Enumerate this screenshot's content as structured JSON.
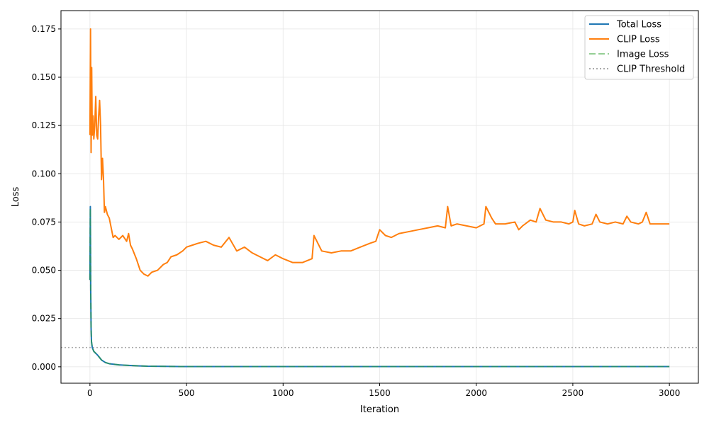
{
  "chart_data": {
    "type": "line",
    "xlabel": "Iteration",
    "ylabel": "Loss",
    "xlim": [
      -150,
      3150
    ],
    "ylim": [
      -0.0085,
      0.1845
    ],
    "xticks": [
      0,
      500,
      1000,
      1500,
      2000,
      2500,
      3000
    ],
    "xtick_labels": [
      "0",
      "500",
      "1000",
      "1500",
      "2000",
      "2500",
      "3000"
    ],
    "yticks": [
      0.0,
      0.025,
      0.05,
      0.075,
      0.1,
      0.125,
      0.15,
      0.175
    ],
    "ytick_labels": [
      "0.000",
      "0.025",
      "0.050",
      "0.075",
      "0.100",
      "0.125",
      "0.150",
      "0.175"
    ],
    "grid": true,
    "legend_position": "top-right",
    "series": [
      {
        "name": "Total Loss",
        "color": "#1f77b4",
        "style": "solid",
        "x": [
          0,
          2,
          4,
          6,
          8,
          12,
          20,
          40,
          60,
          80,
          100,
          150,
          200,
          250,
          300,
          400,
          500,
          1000,
          1500,
          2000,
          2500,
          3000
        ],
        "y": [
          0.045,
          0.083,
          0.04,
          0.02,
          0.013,
          0.01,
          0.008,
          0.006,
          0.0035,
          0.0022,
          0.0016,
          0.001,
          0.0007,
          0.0005,
          0.0003,
          0.0002,
          0.0001,
          0.0001,
          0.0001,
          0.0001,
          0.0001,
          0.0001
        ]
      },
      {
        "name": "CLIP Loss",
        "color": "#ff7f0e",
        "style": "solid",
        "x": [
          0,
          3,
          6,
          9,
          12,
          16,
          20,
          25,
          30,
          35,
          40,
          45,
          50,
          55,
          60,
          65,
          70,
          75,
          80,
          90,
          100,
          110,
          120,
          130,
          150,
          170,
          190,
          200,
          210,
          220,
          240,
          260,
          280,
          300,
          320,
          350,
          380,
          400,
          420,
          450,
          480,
          500,
          530,
          560,
          600,
          640,
          680,
          720,
          760,
          800,
          840,
          880,
          920,
          960,
          1000,
          1050,
          1100,
          1150,
          1160,
          1200,
          1250,
          1300,
          1350,
          1400,
          1450,
          1480,
          1500,
          1530,
          1560,
          1600,
          1650,
          1700,
          1750,
          1800,
          1840,
          1852,
          1870,
          1900,
          1950,
          2000,
          2040,
          2050,
          2080,
          2100,
          2150,
          2200,
          2220,
          2240,
          2280,
          2310,
          2330,
          2360,
          2400,
          2440,
          2480,
          2500,
          2510,
          2530,
          2560,
          2600,
          2620,
          2640,
          2680,
          2720,
          2760,
          2780,
          2800,
          2840,
          2860,
          2880,
          2900,
          2950,
          3000
        ],
        "y": [
          0.12,
          0.175,
          0.111,
          0.155,
          0.12,
          0.13,
          0.118,
          0.125,
          0.14,
          0.12,
          0.118,
          0.13,
          0.138,
          0.125,
          0.097,
          0.108,
          0.098,
          0.08,
          0.083,
          0.079,
          0.077,
          0.072,
          0.067,
          0.068,
          0.066,
          0.068,
          0.065,
          0.069,
          0.063,
          0.061,
          0.056,
          0.05,
          0.048,
          0.047,
          0.049,
          0.05,
          0.053,
          0.054,
          0.057,
          0.058,
          0.06,
          0.062,
          0.063,
          0.064,
          0.065,
          0.063,
          0.062,
          0.067,
          0.06,
          0.062,
          0.059,
          0.057,
          0.055,
          0.058,
          0.056,
          0.054,
          0.054,
          0.056,
          0.068,
          0.06,
          0.059,
          0.06,
          0.06,
          0.062,
          0.064,
          0.065,
          0.071,
          0.068,
          0.067,
          0.069,
          0.07,
          0.071,
          0.072,
          0.073,
          0.072,
          0.083,
          0.073,
          0.074,
          0.073,
          0.072,
          0.074,
          0.083,
          0.077,
          0.074,
          0.074,
          0.075,
          0.071,
          0.073,
          0.076,
          0.075,
          0.082,
          0.076,
          0.075,
          0.075,
          0.074,
          0.075,
          0.081,
          0.074,
          0.073,
          0.074,
          0.079,
          0.075,
          0.074,
          0.075,
          0.074,
          0.078,
          0.075,
          0.074,
          0.075,
          0.08,
          0.074,
          0.074,
          0.074
        ]
      },
      {
        "name": "Image Loss",
        "color": "#2ca02c",
        "style": "dashed",
        "alpha": 0.5,
        "x": [
          0,
          2,
          4,
          6,
          8,
          12,
          20,
          40,
          60,
          80,
          100,
          150,
          200,
          250,
          300,
          400,
          500,
          1000,
          1500,
          2000,
          2500,
          3000
        ],
        "y": [
          0.045,
          0.082,
          0.04,
          0.02,
          0.013,
          0.01,
          0.008,
          0.006,
          0.0035,
          0.0022,
          0.0016,
          0.001,
          0.0007,
          0.0005,
          0.0003,
          0.0002,
          0.0001,
          0.0001,
          0.0001,
          0.0001,
          0.0001,
          0.0001
        ]
      }
    ],
    "reference_lines": [
      {
        "name": "CLIP Threshold",
        "y": 0.01,
        "color": "#aaaaaa",
        "style": "dotted"
      }
    ],
    "legend": [
      "Total Loss",
      "CLIP Loss",
      "Image Loss",
      "CLIP Threshold"
    ]
  }
}
